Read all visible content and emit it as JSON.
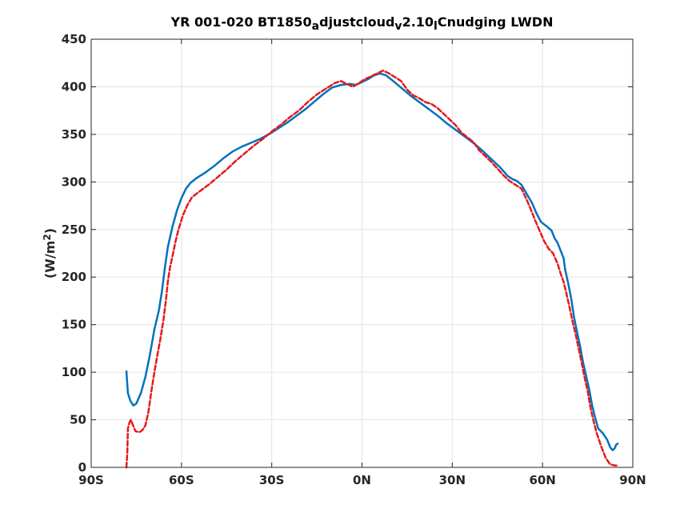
{
  "chart_data": {
    "type": "line",
    "title_parts": [
      {
        "text": "YR 001-020 BT1850",
        "sub": false
      },
      {
        "text": "a",
        "sub": true
      },
      {
        "text": "djustcloud",
        "sub": false
      },
      {
        "text": "v",
        "sub": true
      },
      {
        "text": "2.10",
        "sub": false
      },
      {
        "text": "l",
        "sub": true
      },
      {
        "text": "Cnudging LWDN",
        "sub": false
      }
    ],
    "ylabel_parts": [
      {
        "text": "(W/m",
        "sup": false
      },
      {
        "text": "2",
        "sup": true
      },
      {
        "text": ")",
        "sup": false
      }
    ],
    "xlabel": "",
    "xlim": [
      -90,
      90
    ],
    "ylim": [
      0,
      450
    ],
    "x_ticks": [
      {
        "value": -90,
        "label": "90S"
      },
      {
        "value": -60,
        "label": "60S"
      },
      {
        "value": -30,
        "label": "30S"
      },
      {
        "value": 0,
        "label": "0N"
      },
      {
        "value": 30,
        "label": "30N"
      },
      {
        "value": 60,
        "label": "60N"
      },
      {
        "value": 90,
        "label": "90N"
      }
    ],
    "y_ticks": [
      {
        "value": 0,
        "label": "0"
      },
      {
        "value": 50,
        "label": "50"
      },
      {
        "value": 100,
        "label": "100"
      },
      {
        "value": 150,
        "label": "150"
      },
      {
        "value": 200,
        "label": "200"
      },
      {
        "value": 250,
        "label": "250"
      },
      {
        "value": 300,
        "label": "300"
      },
      {
        "value": 350,
        "label": "350"
      },
      {
        "value": 400,
        "label": "400"
      },
      {
        "value": 450,
        "label": "450"
      }
    ],
    "grid": true,
    "series": [
      {
        "color": "#0072bd",
        "style": "solid",
        "points": [
          [
            -78.3,
            101
          ],
          [
            -77.8,
            78
          ],
          [
            -77,
            70
          ],
          [
            -76,
            65
          ],
          [
            -75,
            67
          ],
          [
            -73.5,
            78
          ],
          [
            -72,
            95
          ],
          [
            -70.5,
            118
          ],
          [
            -69,
            145
          ],
          [
            -67.5,
            165
          ],
          [
            -66.5,
            185
          ],
          [
            -65.5,
            210
          ],
          [
            -64.5,
            232
          ],
          [
            -63,
            253
          ],
          [
            -61.5,
            270
          ],
          [
            -60,
            283
          ],
          [
            -58.5,
            293
          ],
          [
            -57,
            299
          ],
          [
            -55,
            304
          ],
          [
            -52,
            310
          ],
          [
            -49,
            317
          ],
          [
            -46,
            325
          ],
          [
            -43,
            332
          ],
          [
            -40,
            337
          ],
          [
            -37,
            341
          ],
          [
            -34,
            345
          ],
          [
            -31,
            350
          ],
          [
            -28,
            356
          ],
          [
            -25,
            362
          ],
          [
            -22,
            369
          ],
          [
            -19,
            376
          ],
          [
            -16,
            384
          ],
          [
            -13,
            392
          ],
          [
            -10,
            399
          ],
          [
            -7,
            402
          ],
          [
            -4,
            403
          ],
          [
            -2,
            402
          ],
          [
            0,
            405
          ],
          [
            2,
            408
          ],
          [
            4,
            412
          ],
          [
            6,
            414
          ],
          [
            8,
            412
          ],
          [
            10,
            407
          ],
          [
            13,
            399
          ],
          [
            16,
            391
          ],
          [
            19,
            384
          ],
          [
            22,
            377
          ],
          [
            25,
            370
          ],
          [
            28,
            362
          ],
          [
            31,
            355
          ],
          [
            34,
            348
          ],
          [
            37,
            341
          ],
          [
            40,
            333
          ],
          [
            43,
            324
          ],
          [
            46,
            315
          ],
          [
            48.5,
            306
          ],
          [
            50,
            303
          ],
          [
            51.5,
            301
          ],
          [
            53,
            297
          ],
          [
            55,
            286
          ],
          [
            56.5,
            278
          ],
          [
            58,
            267
          ],
          [
            59.5,
            258
          ],
          [
            61.5,
            253
          ],
          [
            63,
            249
          ],
          [
            64,
            241
          ],
          [
            65,
            236
          ],
          [
            66,
            228
          ],
          [
            67,
            220
          ],
          [
            67.5,
            208
          ],
          [
            68.5,
            194
          ],
          [
            69.5,
            178
          ],
          [
            70.5,
            157
          ],
          [
            71.5,
            142
          ],
          [
            72.5,
            127
          ],
          [
            73.5,
            110
          ],
          [
            74.5,
            96
          ],
          [
            75.5,
            82
          ],
          [
            76.5,
            65
          ],
          [
            77.5,
            52
          ],
          [
            78.5,
            41
          ],
          [
            80,
            36
          ],
          [
            81.5,
            29
          ],
          [
            82.5,
            21
          ],
          [
            83.3,
            18
          ],
          [
            84,
            20
          ],
          [
            84.5,
            24
          ],
          [
            85,
            25
          ]
        ]
      },
      {
        "color": "#e41a1c",
        "style": "dashed",
        "points": [
          [
            -78.3,
            0
          ],
          [
            -78,
            15
          ],
          [
            -77.8,
            41
          ],
          [
            -77.3,
            47
          ],
          [
            -76.8,
            50
          ],
          [
            -76.2,
            45
          ],
          [
            -75.3,
            38
          ],
          [
            -74,
            37
          ],
          [
            -73,
            39
          ],
          [
            -72,
            44
          ],
          [
            -71,
            58
          ],
          [
            -70,
            80
          ],
          [
            -69,
            100
          ],
          [
            -68,
            118
          ],
          [
            -67,
            135
          ],
          [
            -66,
            155
          ],
          [
            -65.2,
            175
          ],
          [
            -64.5,
            196
          ],
          [
            -63.8,
            210
          ],
          [
            -63,
            222
          ],
          [
            -62,
            237
          ],
          [
            -61,
            250
          ],
          [
            -59.5,
            265
          ],
          [
            -58,
            276
          ],
          [
            -56.5,
            284
          ],
          [
            -54,
            290
          ],
          [
            -51,
            297
          ],
          [
            -48,
            305
          ],
          [
            -45,
            313
          ],
          [
            -42,
            322
          ],
          [
            -39,
            330
          ],
          [
            -36,
            338
          ],
          [
            -33,
            345
          ],
          [
            -30,
            353
          ],
          [
            -27,
            360
          ],
          [
            -24,
            368
          ],
          [
            -21,
            375
          ],
          [
            -18,
            384
          ],
          [
            -15,
            392
          ],
          [
            -12,
            398
          ],
          [
            -9,
            404
          ],
          [
            -7,
            406
          ],
          [
            -5,
            403
          ],
          [
            -3,
            400
          ],
          [
            -1,
            404
          ],
          [
            1,
            408
          ],
          [
            3,
            411
          ],
          [
            5,
            414
          ],
          [
            7,
            417
          ],
          [
            9,
            414
          ],
          [
            11,
            410
          ],
          [
            13,
            406
          ],
          [
            15,
            397
          ],
          [
            17,
            391
          ],
          [
            19,
            388
          ],
          [
            21,
            384
          ],
          [
            23,
            382
          ],
          [
            25,
            378
          ],
          [
            27,
            372
          ],
          [
            29,
            366
          ],
          [
            31,
            360
          ],
          [
            33,
            352
          ],
          [
            35,
            347
          ],
          [
            37,
            342
          ],
          [
            39,
            333
          ],
          [
            41,
            327
          ],
          [
            43,
            321
          ],
          [
            45,
            314
          ],
          [
            47,
            307
          ],
          [
            49,
            301
          ],
          [
            51,
            297
          ],
          [
            53,
            293
          ],
          [
            54.5,
            283
          ],
          [
            56,
            272
          ],
          [
            57.5,
            260
          ],
          [
            59,
            249
          ],
          [
            60.5,
            238
          ],
          [
            62,
            230
          ],
          [
            63.5,
            225
          ],
          [
            65,
            214
          ],
          [
            66,
            204
          ],
          [
            67,
            195
          ],
          [
            68,
            182
          ],
          [
            69,
            168
          ],
          [
            70,
            153
          ],
          [
            71,
            140
          ],
          [
            72,
            125
          ],
          [
            73,
            110
          ],
          [
            74,
            94
          ],
          [
            75,
            80
          ],
          [
            76,
            62
          ],
          [
            77,
            48
          ],
          [
            78,
            36
          ],
          [
            79.5,
            22
          ],
          [
            81,
            10
          ],
          [
            82.5,
            3
          ],
          [
            84,
            2
          ],
          [
            85,
            2
          ]
        ]
      }
    ]
  }
}
